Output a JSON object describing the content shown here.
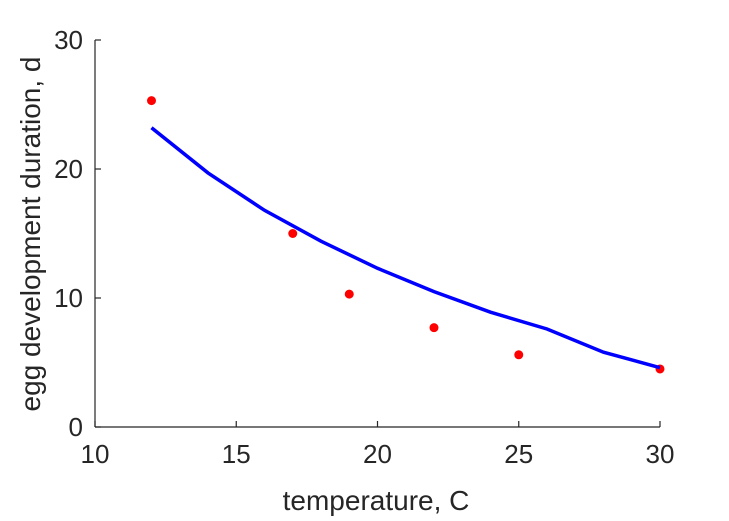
{
  "chart_data": {
    "type": "scatter",
    "xlabel": "temperature, C",
    "ylabel": "egg development duration, d",
    "xlim": [
      10,
      30
    ],
    "ylim": [
      0,
      30
    ],
    "xticks": [
      10,
      15,
      20,
      25,
      30
    ],
    "yticks": [
      0,
      10,
      20,
      30
    ],
    "grid": false,
    "series": [
      {
        "kind": "points",
        "color": "#ff0000",
        "x": [
          12,
          17,
          19,
          22,
          25,
          30
        ],
        "y": [
          25.3,
          15.0,
          10.3,
          7.7,
          5.6,
          4.5
        ]
      },
      {
        "kind": "line",
        "color": "#0000ff",
        "x": [
          12,
          14,
          16,
          18,
          20,
          22,
          24,
          26,
          28,
          30
        ],
        "y": [
          23.2,
          19.7,
          16.8,
          14.4,
          12.3,
          10.5,
          8.9,
          7.6,
          5.8,
          4.6
        ]
      }
    ]
  }
}
